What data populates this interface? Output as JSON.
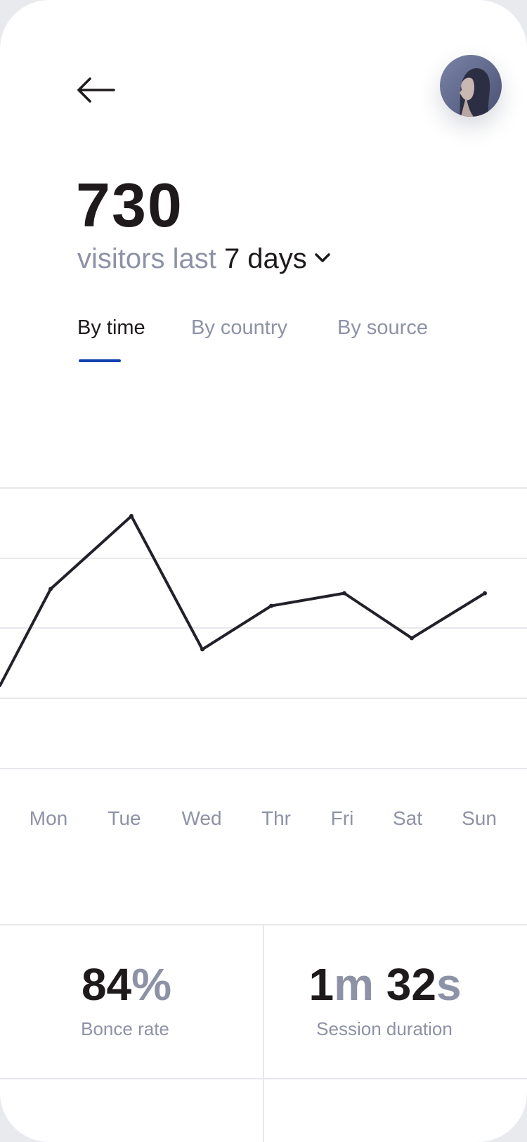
{
  "header": {
    "back_icon": "arrow-left-icon",
    "avatar_icon": "user-avatar-icon"
  },
  "summary": {
    "value": "730",
    "prefix": "visitors last",
    "period": "7 days",
    "period_icon": "chevron-down-icon"
  },
  "tabs": [
    {
      "label": "By time",
      "active": true
    },
    {
      "label": "By country",
      "active": false
    },
    {
      "label": "By source",
      "active": false
    }
  ],
  "colors": {
    "accent": "#1340b0",
    "text_primary": "#1e1a1b",
    "text_secondary": "#8e92a6",
    "line": "#22212a",
    "grid": "#e7e8ec"
  },
  "chart_data": {
    "type": "line",
    "categories": [
      "Mon",
      "Tue",
      "Wed",
      "Thr",
      "Fri",
      "Sat",
      "Sun"
    ],
    "series": [
      {
        "values": [
          128,
          180,
          85,
          116,
          125,
          93,
          125
        ]
      }
    ],
    "ylim": [
      0,
      200
    ],
    "grid": true,
    "legend": "none"
  },
  "stats": [
    {
      "number": "84",
      "unit": "%",
      "label": "Bonce rate"
    },
    {
      "minutes": "1",
      "minutes_unit": "m",
      "seconds": "32",
      "seconds_unit": "s",
      "label": "Session duration"
    }
  ]
}
